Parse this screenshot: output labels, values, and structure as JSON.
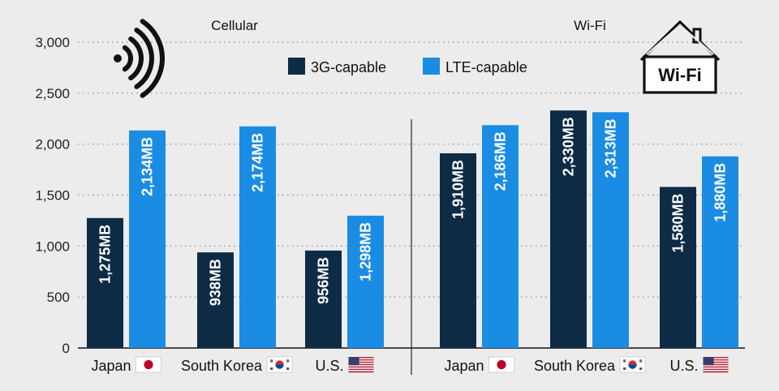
{
  "chart_data": {
    "type": "bar",
    "ylim": [
      0,
      3000
    ],
    "yticks": [
      0,
      500,
      1000,
      1500,
      2000,
      2500,
      3000
    ],
    "ytick_labels": [
      "0",
      "500",
      "1,000",
      "1,500",
      "2,000",
      "2,500",
      "3,000"
    ],
    "unit_suffix": "MB",
    "legend": [
      {
        "name": "3G-capable",
        "color": "#0d2b45"
      },
      {
        "name": "LTE-capable",
        "color": "#1b8ce3"
      }
    ],
    "panels": [
      {
        "title": "Cellular",
        "icon": "cellular-signal-icon",
        "categories": [
          "Japan",
          "South Korea",
          "U.S."
        ],
        "category_flags": [
          "japan-flag-icon",
          "south-korea-flag-icon",
          "us-flag-icon"
        ],
        "series": [
          {
            "name": "3G-capable",
            "values": [
              1275,
              938,
              956
            ],
            "labels": [
              "1,275MB",
              "938MB",
              "956MB"
            ]
          },
          {
            "name": "LTE-capable",
            "values": [
              2134,
              2174,
              1298
            ],
            "labels": [
              "2,134MB",
              "2,174MB",
              "1,298MB"
            ]
          }
        ]
      },
      {
        "title": "Wi-Fi",
        "icon": "wifi-house-icon",
        "icon_text": "Wi-Fi",
        "categories": [
          "Japan",
          "South Korea",
          "U.S."
        ],
        "category_flags": [
          "japan-flag-icon",
          "south-korea-flag-icon",
          "us-flag-icon"
        ],
        "series": [
          {
            "name": "3G-capable",
            "values": [
              1910,
              2330,
              1580
            ],
            "labels": [
              "1,910MB",
              "2,330MB",
              "1,580MB"
            ]
          },
          {
            "name": "LTE-capable",
            "values": [
              2186,
              2313,
              1880
            ],
            "labels": [
              "2,186MB",
              "2,313MB",
              "1,880MB"
            ]
          }
        ]
      }
    ]
  }
}
